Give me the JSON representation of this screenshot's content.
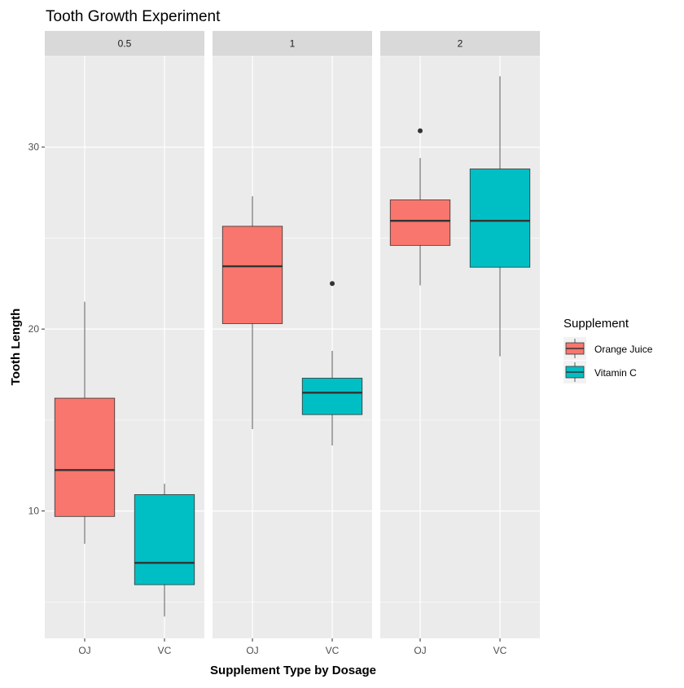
{
  "chart_data": {
    "type": "boxplot",
    "title": "Tooth Growth Experiment",
    "xlabel": "Supplement Type by Dosage",
    "ylabel": "Tooth Length",
    "ylim": [
      3,
      35
    ],
    "yticks": [
      10,
      20,
      30
    ],
    "grid": true,
    "legend": {
      "title": "Supplement",
      "placement": "right",
      "entries": [
        {
          "label": "Orange Juice",
          "color": "#F8766D"
        },
        {
          "label": "Vitamin C",
          "color": "#00BFC4"
        }
      ]
    },
    "categories": [
      "OJ",
      "VC"
    ],
    "panels": [
      {
        "label": "0.5",
        "boxes": [
          {
            "category": "OJ",
            "color": "#F8766D",
            "min": 8.2,
            "q1": 9.7,
            "median": 12.25,
            "q3": 16.2,
            "max": 21.5,
            "outliers": []
          },
          {
            "category": "VC",
            "color": "#00BFC4",
            "min": 4.2,
            "q1": 5.95,
            "median": 7.15,
            "q3": 10.9,
            "max": 11.5,
            "outliers": []
          }
        ]
      },
      {
        "label": "1",
        "boxes": [
          {
            "category": "OJ",
            "color": "#F8766D",
            "min": 14.5,
            "q1": 20.3,
            "median": 23.45,
            "q3": 25.65,
            "max": 27.3,
            "outliers": []
          },
          {
            "category": "VC",
            "color": "#00BFC4",
            "min": 13.6,
            "q1": 15.3,
            "median": 16.5,
            "q3": 17.3,
            "max": 18.8,
            "outliers": [
              22.5
            ]
          }
        ]
      },
      {
        "label": "2",
        "boxes": [
          {
            "category": "OJ",
            "color": "#F8766D",
            "min": 22.4,
            "q1": 24.6,
            "median": 25.95,
            "q3": 27.1,
            "max": 29.4,
            "outliers": [
              30.9
            ]
          },
          {
            "category": "VC",
            "color": "#00BFC4",
            "min": 18.5,
            "q1": 23.4,
            "median": 25.95,
            "q3": 28.8,
            "max": 33.9,
            "outliers": []
          }
        ]
      }
    ]
  }
}
